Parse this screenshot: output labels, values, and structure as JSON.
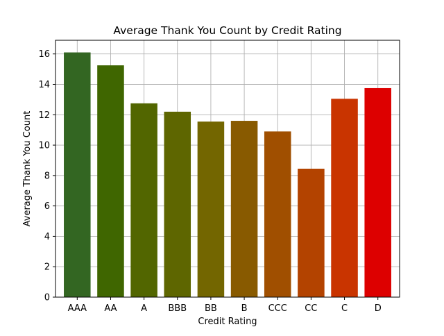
{
  "chart_data": {
    "type": "bar",
    "title": "Average Thank You Count by Credit Rating",
    "xlabel": "Credit Rating",
    "ylabel": "Average Thank You Count",
    "categories": [
      "AAA",
      "AA",
      "A",
      "BBB",
      "BB",
      "B",
      "CCC",
      "CC",
      "C",
      "D"
    ],
    "values": [
      16.1,
      15.25,
      12.75,
      12.2,
      11.55,
      11.6,
      10.9,
      8.45,
      13.05,
      13.75
    ],
    "colors": [
      "#336622",
      "#3f6600",
      "#526600",
      "#5e6600",
      "#736600",
      "#885a00",
      "#a04f00",
      "#b34300",
      "#c93400",
      "#dd0000"
    ],
    "ylim": [
      0,
      16.9
    ],
    "yticks": [
      0,
      2,
      4,
      6,
      8,
      10,
      12,
      14,
      16
    ],
    "grid": true
  }
}
